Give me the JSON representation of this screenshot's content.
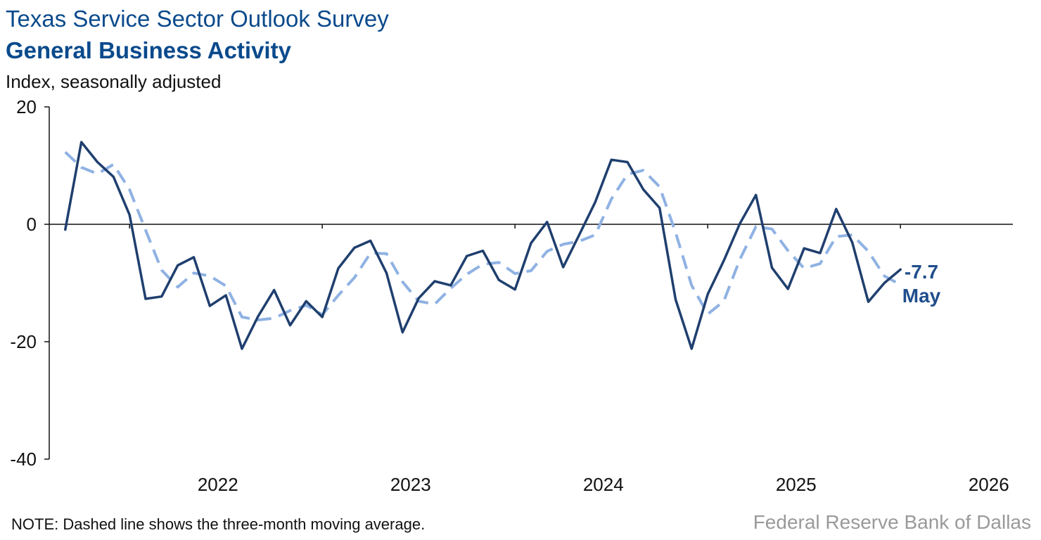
{
  "header": {
    "title": "Texas Service Sector Outlook Survey",
    "subtitle": "General Business Activity",
    "unit": "Index, seasonally adjusted"
  },
  "footer": {
    "note": "NOTE: Dashed line shows the three-month moving average.",
    "source": "Federal Reserve Bank of Dallas"
  },
  "chart_data": {
    "type": "line",
    "title": "General Business Activity",
    "ylabel": "Index, seasonally adjusted",
    "ylim": [
      -40,
      20
    ],
    "yticks": [
      20,
      0,
      -20,
      -40
    ],
    "ytick_labels": [
      "20",
      "0",
      "-20",
      "-40"
    ],
    "xlim": [
      "2021-08",
      "2026-08"
    ],
    "xtick_labels": [
      "2022",
      "2023",
      "2024",
      "2025",
      "2026"
    ],
    "grid": false,
    "series": [
      {
        "style": "solid",
        "color": "#1f3f6e",
        "start": "2021-09",
        "values": [
          -0.9,
          14.0,
          10.6,
          8.1,
          1.6,
          -12.7,
          -12.3,
          -7.0,
          -5.6,
          -13.9,
          -12.1,
          -21.2,
          -15.7,
          -11.2,
          -17.2,
          -13.1,
          -15.8,
          -7.5,
          -4.0,
          -2.8,
          -8.3,
          -18.4,
          -12.6,
          -9.7,
          -10.4,
          -5.4,
          -4.5,
          -9.5,
          -11.1,
          -3.2,
          0.4,
          -7.3,
          -1.8,
          3.8,
          11.0,
          10.6,
          5.9,
          2.8,
          -12.8,
          -21.2,
          -11.9,
          -6.2,
          0.1,
          5.0,
          -7.4,
          -11.0,
          -4.1,
          -4.9,
          2.6,
          -3.1,
          -13.2,
          -10.0,
          -7.7
        ]
      },
      {
        "style": "dashed",
        "color": "#8fb2e3",
        "start": "2021-09",
        "values": [
          12.3,
          9.7,
          8.6,
          10.2,
          5.9,
          -1.0,
          -7.8,
          -10.7,
          -8.3,
          -8.8,
          -10.5,
          -15.8,
          -16.3,
          -16.0,
          -14.7,
          -13.8,
          -15.4,
          -12.1,
          -9.1,
          -4.9,
          -5.0,
          -9.8,
          -13.1,
          -13.6,
          -10.9,
          -8.5,
          -6.8,
          -6.5,
          -8.4,
          -7.9,
          -4.6,
          -3.4,
          -2.9,
          -1.8,
          4.3,
          8.5,
          9.2,
          6.4,
          -1.4,
          -10.4,
          -15.3,
          -13.1,
          -6.0,
          -0.4,
          -0.8,
          -4.5,
          -7.5,
          -6.7,
          -2.1,
          -1.8,
          -4.6,
          -8.8,
          -10.3
        ]
      }
    ],
    "annotation": {
      "value": "-7.7",
      "month": "May"
    }
  }
}
